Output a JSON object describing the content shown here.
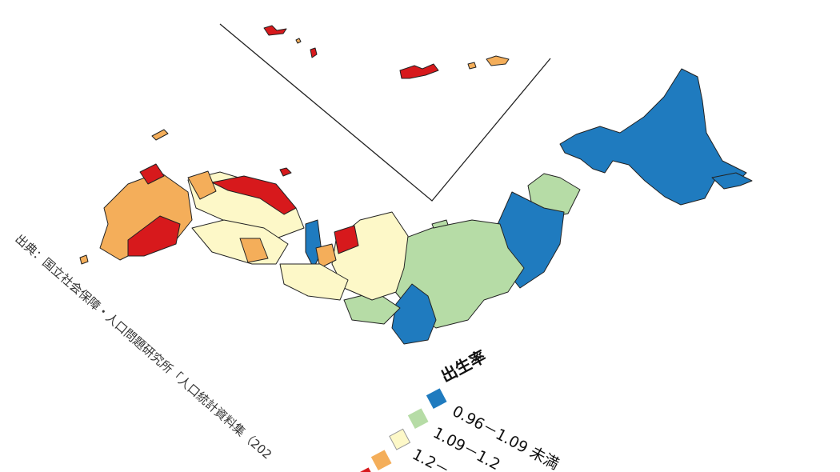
{
  "source": "出典：国立社会保障・人口問題研究所「人口統計資料集（202",
  "legend": {
    "title": "出生率",
    "items": [
      "0.96－1.09 未満",
      "1.09－1.2",
      "1.2－"
    ]
  }
}
